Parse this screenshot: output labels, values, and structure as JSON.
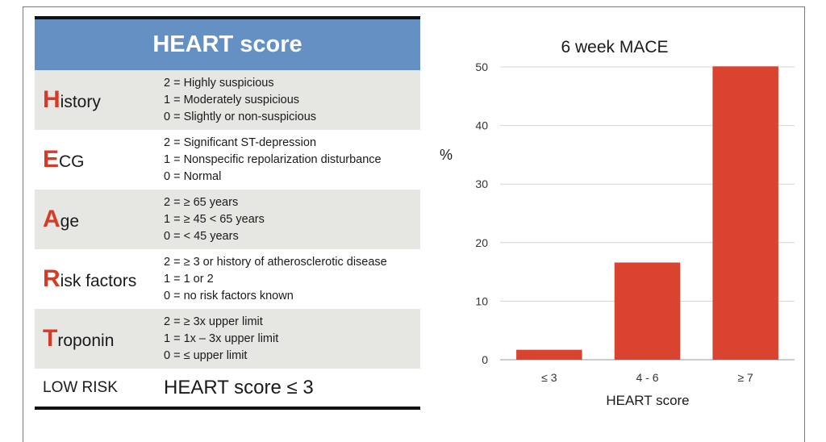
{
  "table": {
    "title": "HEART score",
    "rows": [
      {
        "initial": "H",
        "rest": "istory",
        "lines": [
          "2 = Highly suspicious",
          "1 = Moderately suspicious",
          "0 = Slightly or non-suspicious"
        ]
      },
      {
        "initial": "E",
        "rest": "CG",
        "lines": [
          "2 = Significant ST-depression",
          "1 = Nonspecific repolarization disturbance",
          "0 = Normal"
        ]
      },
      {
        "initial": "A",
        "rest": "ge",
        "lines": [
          "2 = ≥ 65 years",
          "1 = ≥ 45 < 65 years",
          "0 = < 45 years"
        ]
      },
      {
        "initial": "R",
        "rest": "isk factors",
        "lines": [
          "2 = ≥ 3 or history of atherosclerotic disease",
          "1 = 1 or 2",
          "0 = no risk factors known"
        ]
      },
      {
        "initial": "T",
        "rest": "roponin",
        "lines": [
          "2 = ≥ 3x upper limit",
          "1 = 1x – 3x upper limit",
          "0 = ≤ upper limit"
        ]
      }
    ],
    "risk_label": "LOW RISK",
    "risk_value": "HEART score ≤ 3"
  },
  "colors": {
    "accent": "#d63b26",
    "header": "#6590c4",
    "bar": "#d9432f",
    "shade": "#e6e6e3"
  },
  "chart_data": {
    "type": "bar",
    "title": "6 week MACE",
    "xlabel": "HEART score",
    "ylabel": "%",
    "categories": [
      "≤ 3",
      "4 - 6",
      "≥ 7"
    ],
    "values": [
      1.7,
      16.6,
      50.1
    ],
    "ylim": [
      0,
      50
    ],
    "yticks": [
      0,
      10,
      20,
      30,
      40,
      50
    ],
    "grid": true
  }
}
